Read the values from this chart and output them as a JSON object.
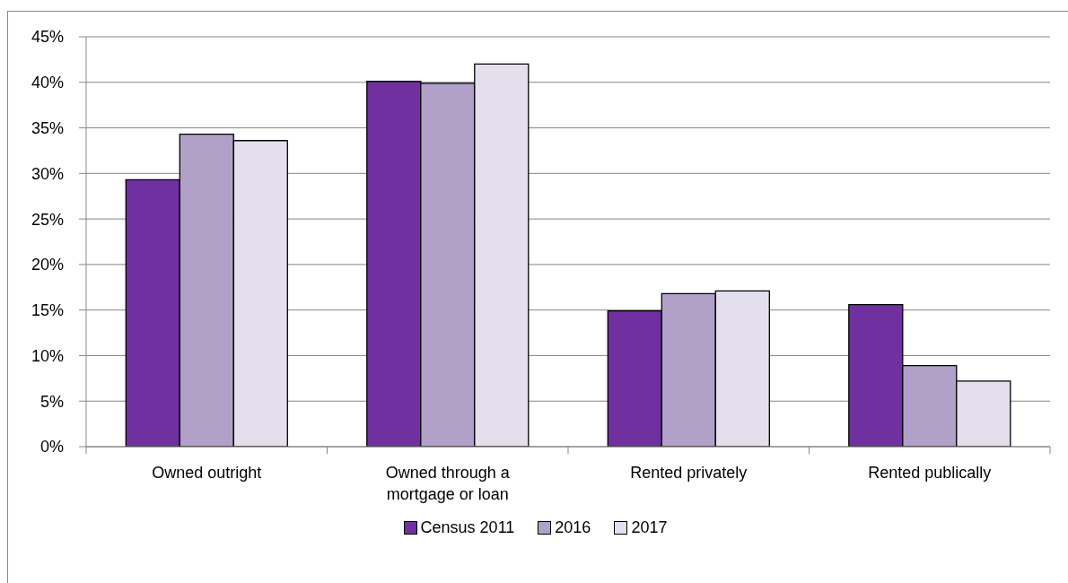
{
  "chart_data": {
    "type": "bar",
    "categories": [
      "Owned outright",
      "Owned through a mortgage or loan",
      "Rented privately",
      "Rented publically"
    ],
    "series": [
      {
        "name": "Census 2011",
        "color": "#7030a0",
        "values": [
          29.3,
          40.1,
          14.9,
          15.6
        ]
      },
      {
        "name": "2016",
        "color": "#b1a0c7",
        "values": [
          34.3,
          39.9,
          16.8,
          8.9
        ]
      },
      {
        "name": "2017",
        "color": "#e4dfec",
        "values": [
          33.6,
          42.0,
          17.1,
          7.2
        ]
      }
    ],
    "ylim": [
      0,
      45
    ],
    "yticks": [
      {
        "value": 0,
        "label": "0%"
      },
      {
        "value": 5,
        "label": "5%"
      },
      {
        "value": 10,
        "label": "10%"
      },
      {
        "value": 15,
        "label": "15%"
      },
      {
        "value": 20,
        "label": "20%"
      },
      {
        "value": 25,
        "label": "25%"
      },
      {
        "value": 30,
        "label": "30%"
      },
      {
        "value": 35,
        "label": "35%"
      },
      {
        "value": 40,
        "label": "40%"
      },
      {
        "value": 45,
        "label": "45%"
      }
    ],
    "grid": "y",
    "legend": "bottom"
  }
}
